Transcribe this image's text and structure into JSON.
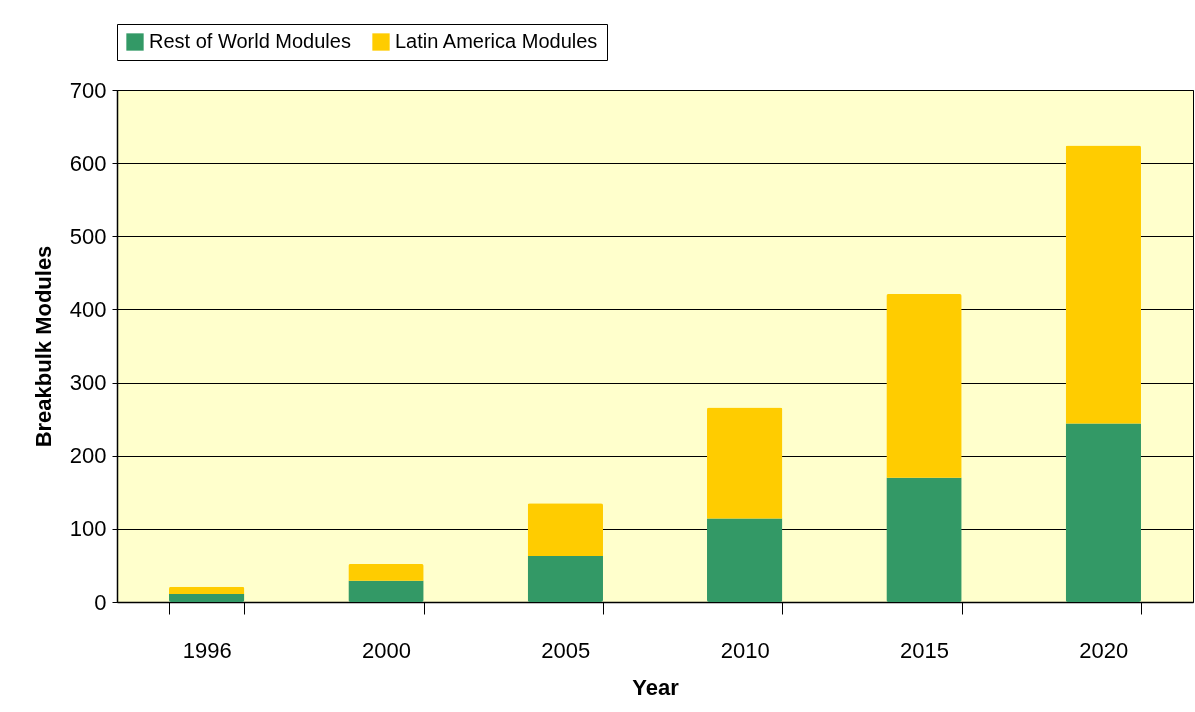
{
  "chart_data": {
    "type": "bar",
    "stacked": true,
    "xlabel": "Year",
    "ylabel": "Breakbulk Modules",
    "categories": [
      "1996",
      "2000",
      "2005",
      "2010",
      "2015",
      "2020"
    ],
    "series": [
      {
        "name": "Rest of World Modules",
        "color": "#339966",
        "values": [
          11,
          29,
          63,
          114,
          170,
          244
        ]
      },
      {
        "name": "Latin America Modules",
        "color": "#ffcc00",
        "values": [
          10,
          23,
          72,
          152,
          251,
          380
        ]
      }
    ],
    "ylim": [
      0,
      700
    ],
    "yticks": [
      0,
      100,
      200,
      300,
      400,
      500,
      600,
      700
    ],
    "grid": "y",
    "legend": "top"
  }
}
